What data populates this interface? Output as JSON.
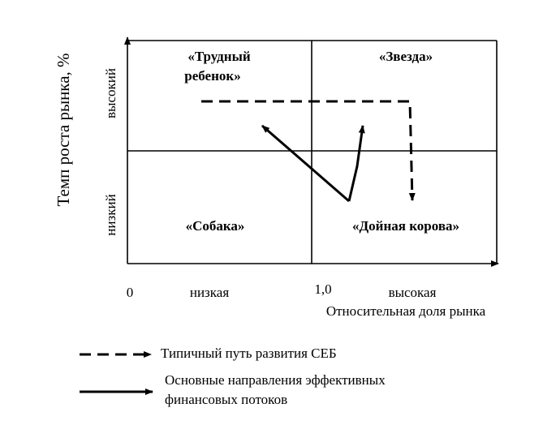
{
  "title_y": "Темп роста рынка, %",
  "y_levels": {
    "high": "высокий",
    "low": "низкий"
  },
  "x_axis": {
    "zero": "0",
    "low": "низкая",
    "mid": "1,0",
    "high": "высокая",
    "title": "Относительная доля рынка"
  },
  "quadrants": {
    "question": [
      "«Трудный",
      "ребенок»"
    ],
    "star": "«Звезда»",
    "dog": "«Собака»",
    "cow": "«Дойная корова»"
  },
  "legend": {
    "dashed": "Типичный путь развития СЕБ",
    "solid": [
      "Основные направления эффективных",
      "финансовых потоков"
    ]
  }
}
